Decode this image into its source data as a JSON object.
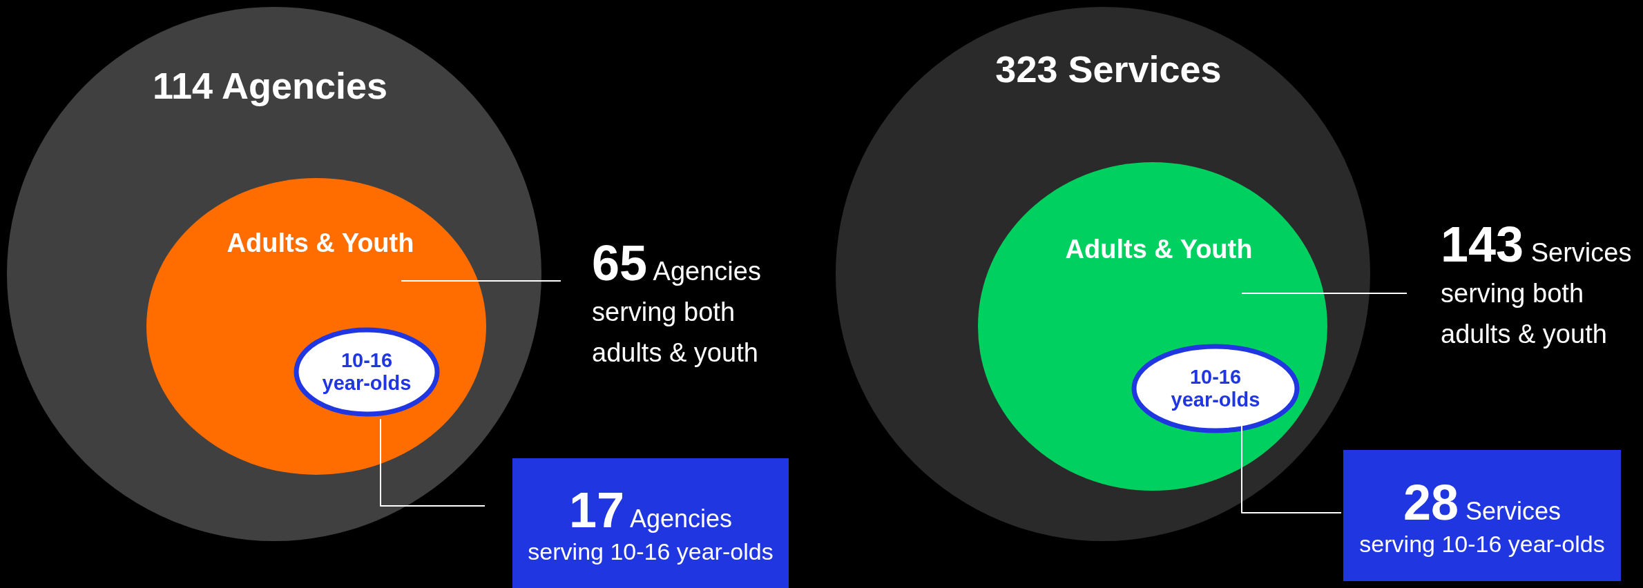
{
  "chart_data": [
    {
      "type": "other",
      "title": "114 Agencies",
      "color": "#404040",
      "categories": [
        "Adults & Youth",
        "10-16 year-olds"
      ],
      "values": [
        65,
        17
      ],
      "data_labels": true,
      "colors": [
        "#ff6c00",
        "#2036e0"
      ],
      "annotations": [
        "Agencies",
        "serving both adults & youth",
        "Agencies",
        "serving 10-16 year-olds"
      ]
    },
    {
      "type": "other",
      "title": "323 Services",
      "color": "#2a2a2a",
      "categories": [
        "Adults & Youth",
        "10-16 year-olds"
      ],
      "values": [
        143,
        28
      ],
      "data_labels": true,
      "colors": [
        "#00d060",
        "#2036e0"
      ],
      "annotations": [
        "Services",
        "serving both adults & youth",
        "Services",
        "serving 10-16 year-olds"
      ]
    }
  ]
}
